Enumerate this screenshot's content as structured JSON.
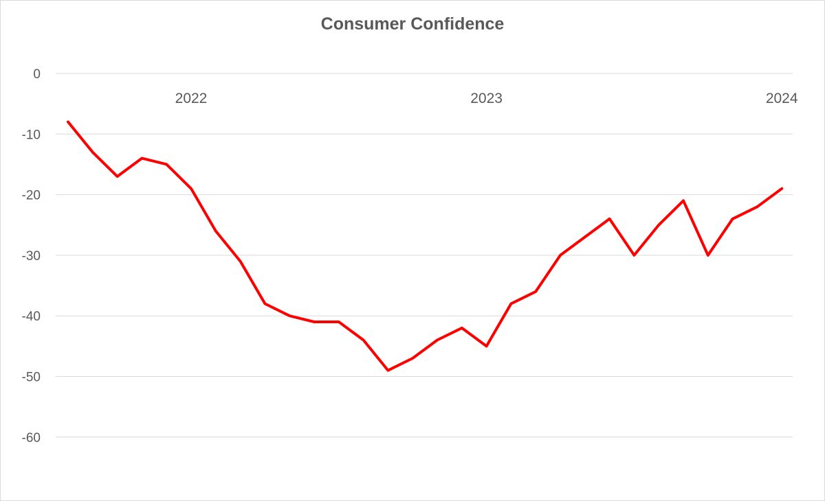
{
  "chart_data": {
    "type": "line",
    "title": "Consumer Confidence",
    "xlabel": "",
    "ylabel": "",
    "ylim": [
      -60,
      0
    ],
    "yticks": [
      0,
      -10,
      -20,
      -30,
      -40,
      -50,
      -60
    ],
    "ytick_labels": [
      "0",
      "-10",
      "-20",
      "-30",
      "-40",
      "-50",
      "-60"
    ],
    "xtick_labels": [
      "2022",
      "2023",
      "2024"
    ],
    "xtick_index": [
      5,
      17,
      29
    ],
    "grid": true,
    "legend": "none",
    "color": "#ff0000",
    "x": [
      "2021-08",
      "2021-09",
      "2021-10",
      "2021-11",
      "2021-12",
      "2022-01",
      "2022-02",
      "2022-03",
      "2022-04",
      "2022-05",
      "2022-06",
      "2022-07",
      "2022-08",
      "2022-09",
      "2022-10",
      "2022-11",
      "2022-12",
      "2023-01",
      "2023-02",
      "2023-03",
      "2023-04",
      "2023-05",
      "2023-06",
      "2023-07",
      "2023-08",
      "2023-09",
      "2023-10",
      "2023-11",
      "2023-12",
      "2024-01"
    ],
    "values": [
      -8,
      -13,
      -17,
      -14,
      -15,
      -19,
      -26,
      -31,
      -38,
      -40,
      -41,
      -41,
      -44,
      -49,
      -47,
      -44,
      -42,
      -45,
      -38,
      -36,
      -30,
      -27,
      -24,
      -30,
      -25,
      -21,
      -30,
      -24,
      -22,
      -19
    ]
  }
}
